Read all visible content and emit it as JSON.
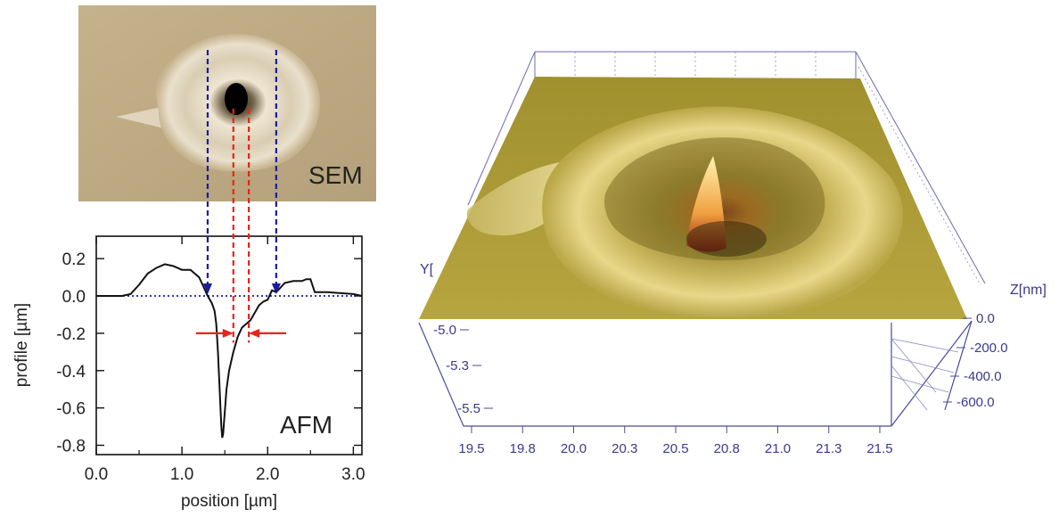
{
  "sem_panel": {
    "label": "SEM",
    "colors": {
      "background": "#bfab84",
      "crater_rim": "#e6ddc9",
      "pit": "#000000",
      "marker_blue": "#1c1c9e",
      "marker_red": "#e8241c"
    }
  },
  "afm_profile": {
    "label": "AFM",
    "colors": {
      "line": "#111111",
      "zero_line": "#1c1c9e"
    },
    "arrows": {
      "blue_positions_um": [
        1.3,
        2.1
      ],
      "red_positions_um": [
        1.6,
        1.78
      ]
    }
  },
  "topography_3d": {
    "y_axis_label": "Y[",
    "z_axis_label": "Z[nm]",
    "x_ticks": [
      "19.5",
      "19.8",
      "20.0",
      "20.3",
      "20.5",
      "20.8",
      "21.0",
      "21.3",
      "21.5"
    ],
    "y_ticks": [
      "-5.0",
      "-5.3",
      "-5.5"
    ],
    "z_ticks": [
      "0.0",
      "-200.0",
      "-400.0",
      "-600.0"
    ],
    "colors": {
      "axis": "#4a4a9a",
      "surface_light": "#b5a33e",
      "surface_dark": "#6e6220",
      "crater_highlight": "#f2e39a",
      "pit_core": "#8a1a10"
    }
  },
  "chart_data": [
    {
      "type": "line",
      "title": "",
      "xlabel": "position [µm]",
      "ylabel": "profile [µm]",
      "xlim": [
        0.0,
        3.1
      ],
      "ylim": [
        -0.85,
        0.32
      ],
      "x_tick_labels": [
        "0.0",
        "1.0",
        "2.0",
        "3.0"
      ],
      "x_ticks": [
        0.0,
        1.0,
        2.0,
        3.0
      ],
      "y_tick_labels": [
        "0.2",
        "0.0",
        "-0.2",
        "-0.4",
        "-0.6",
        "-0.8"
      ],
      "y_ticks": [
        0.2,
        0.0,
        -0.2,
        -0.4,
        -0.6,
        -0.8
      ],
      "grid": false,
      "series": [
        {
          "x": [
            0.0,
            0.3,
            0.4,
            0.5,
            0.6,
            0.7,
            0.8,
            0.9,
            1.0,
            1.1,
            1.2,
            1.25,
            1.3,
            1.35,
            1.38,
            1.4,
            1.42,
            1.44,
            1.46,
            1.47,
            1.48,
            1.5,
            1.52,
            1.55,
            1.6,
            1.65,
            1.7,
            1.75,
            1.8,
            1.85,
            1.9,
            1.95,
            2.0,
            2.05,
            2.1,
            2.2,
            2.3,
            2.4,
            2.45,
            2.5,
            2.55,
            2.7,
            3.0,
            3.1
          ],
          "y": [
            0.0,
            0.0,
            0.01,
            0.06,
            0.12,
            0.15,
            0.17,
            0.16,
            0.14,
            0.14,
            0.1,
            0.05,
            0.0,
            -0.04,
            -0.08,
            -0.15,
            -0.3,
            -0.5,
            -0.7,
            -0.76,
            -0.74,
            -0.62,
            -0.5,
            -0.4,
            -0.3,
            -0.22,
            -0.17,
            -0.15,
            -0.13,
            -0.09,
            -0.05,
            -0.03,
            -0.02,
            0.03,
            0.02,
            0.07,
            0.08,
            0.08,
            0.09,
            0.09,
            0.02,
            0.02,
            0.01,
            0.0
          ]
        }
      ]
    },
    {
      "type": "surface",
      "title": "",
      "xlabel": "",
      "ylabel": "Y[",
      "zlabel": "Z[nm]",
      "x_tick_labels": [
        "19.5",
        "19.8",
        "20.0",
        "20.3",
        "20.5",
        "20.8",
        "21.0",
        "21.3",
        "21.5"
      ],
      "y_tick_labels": [
        "-5.0",
        "-5.3",
        "-5.5"
      ],
      "z_tick_labels": [
        "0.0",
        "-200.0",
        "-400.0",
        "-600.0"
      ],
      "zlim": [
        -700,
        0
      ],
      "grid": false
    }
  ]
}
